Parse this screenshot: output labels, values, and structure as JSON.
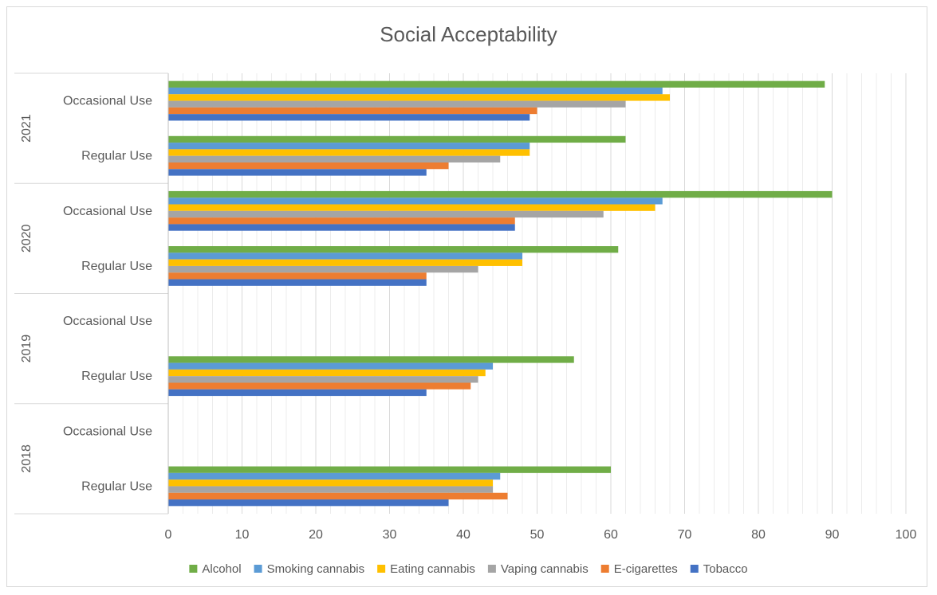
{
  "chart_data": {
    "type": "bar",
    "orientation": "horizontal",
    "title": "Social Acceptability",
    "xlim": [
      0,
      100
    ],
    "x_ticks": [
      "0",
      "10",
      "20",
      "30",
      "40",
      "50",
      "60",
      "70",
      "80",
      "90",
      "100"
    ],
    "grid": "vertical major and minor gridlines",
    "legend_position": "bottom",
    "groups": [
      {
        "year": "2021",
        "categories": [
          "Occasional Use",
          "Regular Use"
        ]
      },
      {
        "year": "2020",
        "categories": [
          "Occasional Use",
          "Regular Use"
        ]
      },
      {
        "year": "2019",
        "categories": [
          "Occasional Use",
          "Regular Use"
        ]
      },
      {
        "year": "2018",
        "categories": [
          "Occasional Use",
          "Regular Use"
        ]
      }
    ],
    "series": [
      {
        "name": "Alcohol",
        "color": "#70ad47",
        "values": {
          "2021": {
            "Occasional Use": 89,
            "Regular Use": 62
          },
          "2020": {
            "Occasional Use": 90,
            "Regular Use": 61
          },
          "2019": {
            "Occasional Use": null,
            "Regular Use": 55
          },
          "2018": {
            "Occasional Use": null,
            "Regular Use": 60
          }
        }
      },
      {
        "name": "Smoking cannabis",
        "color": "#5b9bd5",
        "values": {
          "2021": {
            "Occasional Use": 67,
            "Regular Use": 49
          },
          "2020": {
            "Occasional Use": 67,
            "Regular Use": 48
          },
          "2019": {
            "Occasional Use": null,
            "Regular Use": 44
          },
          "2018": {
            "Occasional Use": null,
            "Regular Use": 45
          }
        }
      },
      {
        "name": "Eating cannabis",
        "color": "#ffc000",
        "values": {
          "2021": {
            "Occasional Use": 68,
            "Regular Use": 49
          },
          "2020": {
            "Occasional Use": 66,
            "Regular Use": 48
          },
          "2019": {
            "Occasional Use": null,
            "Regular Use": 43
          },
          "2018": {
            "Occasional Use": null,
            "Regular Use": 44
          }
        }
      },
      {
        "name": "Vaping cannabis",
        "color": "#a5a5a5",
        "values": {
          "2021": {
            "Occasional Use": 62,
            "Regular Use": 45
          },
          "2020": {
            "Occasional Use": 59,
            "Regular Use": 42
          },
          "2019": {
            "Occasional Use": null,
            "Regular Use": 42
          },
          "2018": {
            "Occasional Use": null,
            "Regular Use": 44
          }
        }
      },
      {
        "name": "E-cigarettes",
        "color": "#ed7d31",
        "values": {
          "2021": {
            "Occasional Use": 50,
            "Regular Use": 38
          },
          "2020": {
            "Occasional Use": 47,
            "Regular Use": 35
          },
          "2019": {
            "Occasional Use": null,
            "Regular Use": 41
          },
          "2018": {
            "Occasional Use": null,
            "Regular Use": 46
          }
        }
      },
      {
        "name": "Tobacco",
        "color": "#4472c4",
        "values": {
          "2021": {
            "Occasional Use": 49,
            "Regular Use": 35
          },
          "2020": {
            "Occasional Use": 47,
            "Regular Use": 35
          },
          "2019": {
            "Occasional Use": null,
            "Regular Use": 35
          },
          "2018": {
            "Occasional Use": null,
            "Regular Use": 38
          }
        }
      }
    ]
  }
}
